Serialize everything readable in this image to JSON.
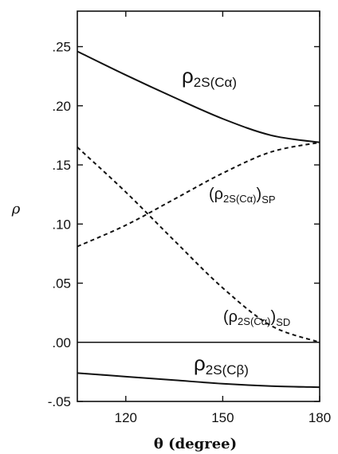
{
  "chart_data": {
    "type": "line",
    "title": "",
    "xlabel": "θ (degree)",
    "ylabel": "ρ",
    "xlim": [
      105,
      180
    ],
    "ylim": [
      -0.05,
      0.28
    ],
    "xticks": [
      120,
      150,
      180
    ],
    "xtick_labels": [
      "120",
      "150",
      "180"
    ],
    "yticks": [
      -0.05,
      0.0,
      0.05,
      0.1,
      0.15,
      0.2,
      0.25
    ],
    "ytick_labels": [
      "-.05",
      ".00",
      ".05",
      ".10",
      ".15",
      ".20",
      ".25"
    ],
    "grid": false,
    "legend": "none",
    "series": [
      {
        "name": "ρ2S(Cα)",
        "style": "solid",
        "x": [
          105,
          120,
          135,
          150,
          165,
          180
        ],
        "y": [
          0.246,
          0.226,
          0.207,
          0.189,
          0.175,
          0.169
        ]
      },
      {
        "name": "(ρ2S(Cα))SP",
        "style": "dashed",
        "x": [
          105,
          120,
          135,
          150,
          165,
          180
        ],
        "y": [
          0.081,
          0.099,
          0.121,
          0.143,
          0.161,
          0.169
        ]
      },
      {
        "name": "(ρ2S(Cα))SD",
        "style": "dashed",
        "x": [
          105,
          120,
          135,
          150,
          165,
          180
        ],
        "y": [
          0.165,
          0.127,
          0.086,
          0.046,
          0.014,
          0.0
        ]
      },
      {
        "name": "ρ2S(Cβ)",
        "style": "solid",
        "x": [
          105,
          120,
          135,
          150,
          165,
          180
        ],
        "y": [
          -0.026,
          -0.029,
          -0.032,
          -0.035,
          -0.037,
          -0.038
        ]
      }
    ],
    "reference_lines": [
      {
        "y": 0.0,
        "style": "solid"
      }
    ]
  }
}
